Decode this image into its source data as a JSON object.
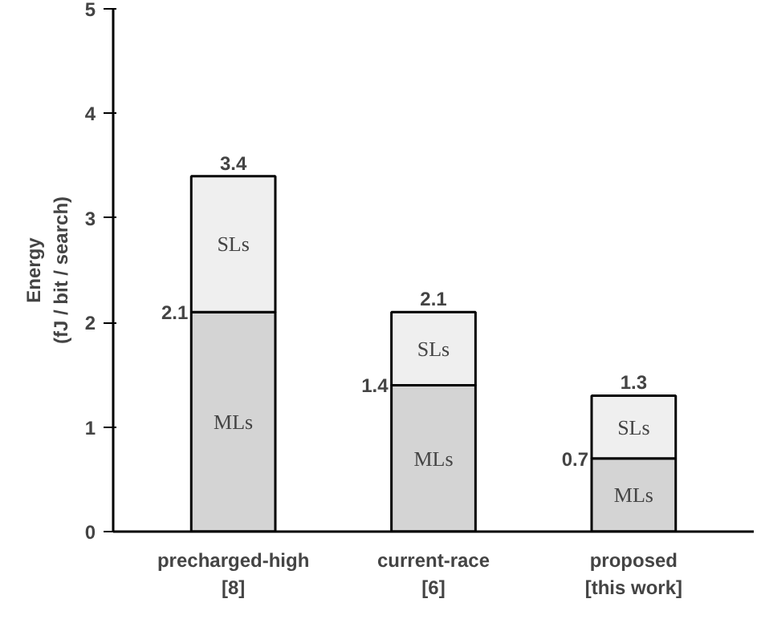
{
  "chart_data": {
    "type": "bar",
    "stacked": true,
    "ylabel": "Energy\n(fJ / bit / search)",
    "categories": [
      "precharged-high\n[8]",
      "current-race\n[6]",
      "proposed\n[this work]"
    ],
    "series": [
      {
        "name": "MLs",
        "color": "#d4d4d4",
        "values": [
          2.1,
          1.4,
          0.7
        ],
        "value_labels": [
          "2.1",
          "1.4",
          "0.7"
        ]
      },
      {
        "name": "SLs",
        "color": "#efefef",
        "values": [
          1.3,
          0.7,
          0.6
        ]
      }
    ],
    "totals": [
      "3.4",
      "2.1",
      "1.3"
    ],
    "ylim": [
      0,
      5
    ],
    "yticks": [
      0,
      1,
      2,
      3,
      4,
      5
    ],
    "grid": false
  }
}
